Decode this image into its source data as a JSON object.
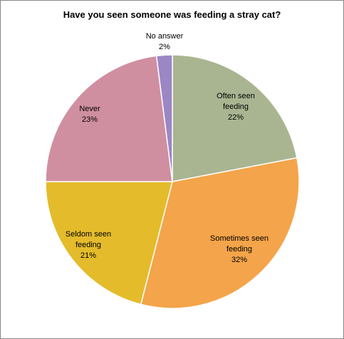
{
  "chart_data": {
    "type": "pie",
    "title": "Have you seen someone was feeding a stray cat?",
    "categories": [
      "Often seen feeding",
      "Sometimes seen feeding",
      "Seldom seen feeding",
      "Never",
      "No answer"
    ],
    "values": [
      22,
      32,
      21,
      23,
      2
    ],
    "value_labels": [
      "22%",
      "32%",
      "21%",
      "23%",
      "2%"
    ],
    "colors": [
      "#a9b591",
      "#f4a44a",
      "#e4bb2b",
      "#d08fa1",
      "#9b87c4"
    ]
  }
}
